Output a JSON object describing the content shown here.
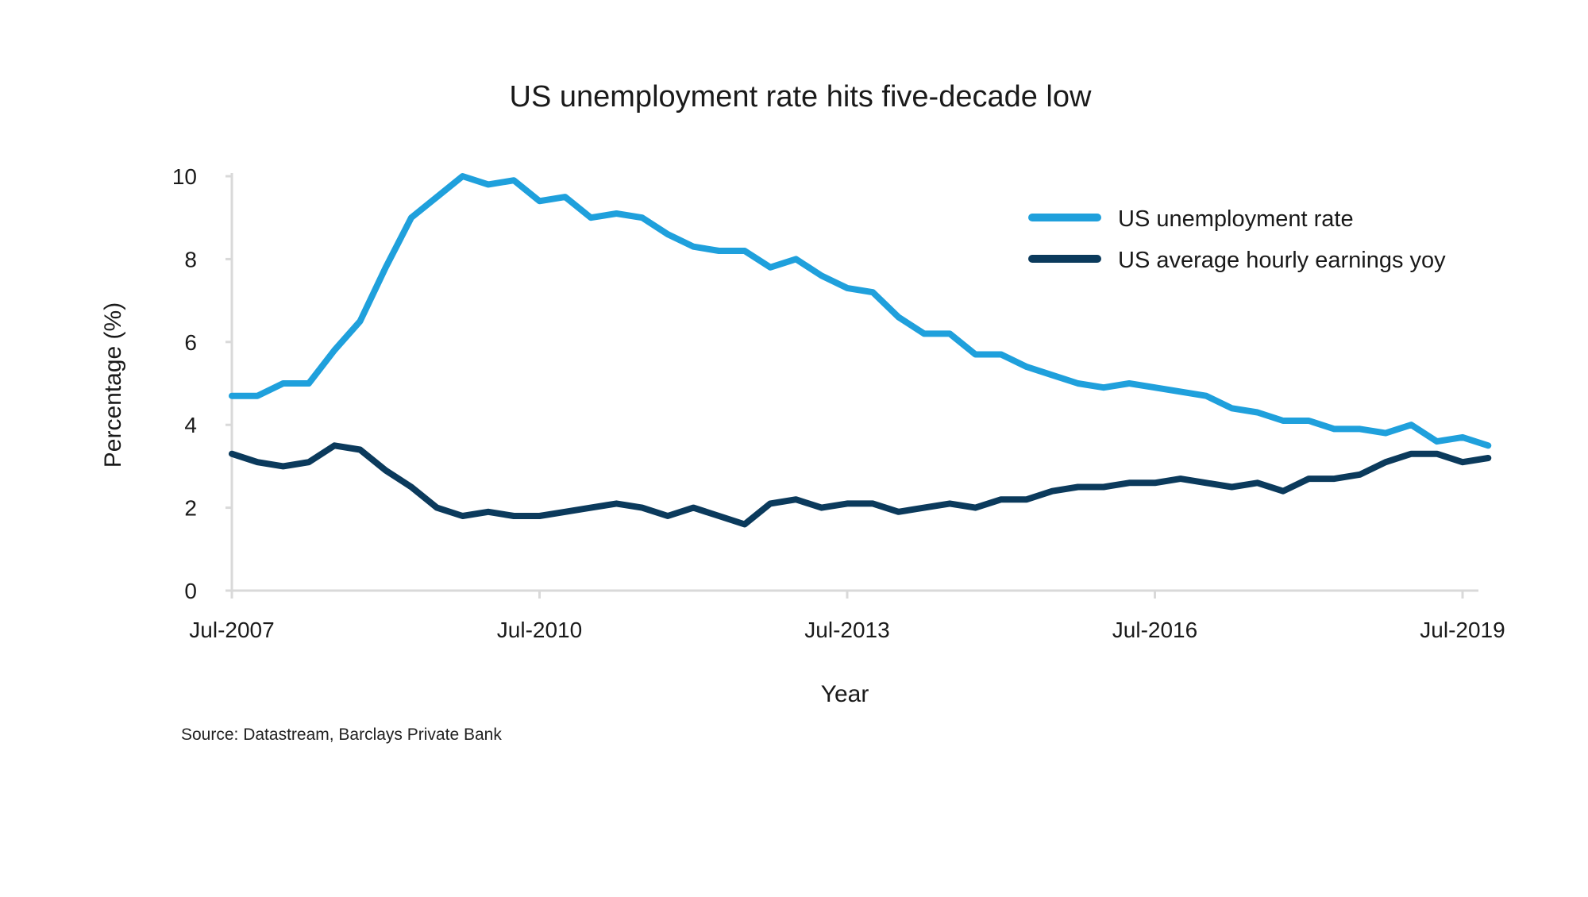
{
  "chart_data": {
    "type": "line",
    "title": "US unemployment rate hits five-decade low",
    "xlabel": "Year",
    "ylabel": "Percentage (%)",
    "source": "Source: Datastream, Barclays Private Bank",
    "ylim": [
      0,
      10
    ],
    "y_ticks": [
      "0",
      "2",
      "4",
      "6",
      "8",
      "10"
    ],
    "x_ticks": [
      "Jul-2007",
      "Jul-2010",
      "Jul-2013",
      "Jul-2016",
      "Jul-2019"
    ],
    "grid": false,
    "legend_position": "top-right",
    "x_start": "2007-07",
    "x_end": "2019-10",
    "series": [
      {
        "name": "US unemployment rate",
        "color": "#1fa0dc",
        "x": [
          "2007-07",
          "2007-10",
          "2008-01",
          "2008-04",
          "2008-07",
          "2008-10",
          "2009-01",
          "2009-04",
          "2009-07",
          "2009-10",
          "2010-01",
          "2010-04",
          "2010-07",
          "2010-10",
          "2011-01",
          "2011-04",
          "2011-07",
          "2011-10",
          "2012-01",
          "2012-04",
          "2012-07",
          "2012-10",
          "2013-01",
          "2013-04",
          "2013-07",
          "2013-10",
          "2014-01",
          "2014-04",
          "2014-07",
          "2014-10",
          "2015-01",
          "2015-04",
          "2015-07",
          "2015-10",
          "2016-01",
          "2016-04",
          "2016-07",
          "2016-10",
          "2017-01",
          "2017-04",
          "2017-07",
          "2017-10",
          "2018-01",
          "2018-04",
          "2018-07",
          "2018-10",
          "2019-01",
          "2019-04",
          "2019-07",
          "2019-10"
        ],
        "values": [
          4.7,
          4.7,
          5.0,
          5.0,
          5.8,
          6.5,
          7.8,
          9.0,
          9.5,
          10.0,
          9.8,
          9.9,
          9.4,
          9.5,
          9.0,
          9.1,
          9.0,
          8.6,
          8.3,
          8.2,
          8.2,
          7.8,
          8.0,
          7.6,
          7.3,
          7.2,
          6.6,
          6.2,
          6.2,
          5.7,
          5.7,
          5.4,
          5.2,
          5.0,
          4.9,
          5.0,
          4.9,
          4.8,
          4.7,
          4.4,
          4.3,
          4.1,
          4.1,
          3.9,
          3.9,
          3.8,
          4.0,
          3.6,
          3.7,
          3.5
        ]
      },
      {
        "name": "US average hourly earnings yoy",
        "color": "#0b3a5c",
        "x": [
          "2007-07",
          "2007-10",
          "2008-01",
          "2008-04",
          "2008-07",
          "2008-10",
          "2009-01",
          "2009-04",
          "2009-07",
          "2009-10",
          "2010-01",
          "2010-04",
          "2010-07",
          "2010-10",
          "2011-01",
          "2011-04",
          "2011-07",
          "2011-10",
          "2012-01",
          "2012-04",
          "2012-07",
          "2012-10",
          "2013-01",
          "2013-04",
          "2013-07",
          "2013-10",
          "2014-01",
          "2014-04",
          "2014-07",
          "2014-10",
          "2015-01",
          "2015-04",
          "2015-07",
          "2015-10",
          "2016-01",
          "2016-04",
          "2016-07",
          "2016-10",
          "2017-01",
          "2017-04",
          "2017-07",
          "2017-10",
          "2018-01",
          "2018-04",
          "2018-07",
          "2018-10",
          "2019-01",
          "2019-04",
          "2019-07",
          "2019-10"
        ],
        "values": [
          3.3,
          3.1,
          3.0,
          3.1,
          3.5,
          3.4,
          2.9,
          2.5,
          2.0,
          1.8,
          1.9,
          1.8,
          1.8,
          1.9,
          2.0,
          2.1,
          2.0,
          1.8,
          2.0,
          1.8,
          1.6,
          2.1,
          2.2,
          2.0,
          2.1,
          2.1,
          1.9,
          2.0,
          2.1,
          2.0,
          2.2,
          2.2,
          2.4,
          2.5,
          2.5,
          2.6,
          2.6,
          2.7,
          2.6,
          2.5,
          2.6,
          2.4,
          2.7,
          2.7,
          2.8,
          3.1,
          3.3,
          3.3,
          3.1,
          3.2
        ]
      }
    ]
  }
}
